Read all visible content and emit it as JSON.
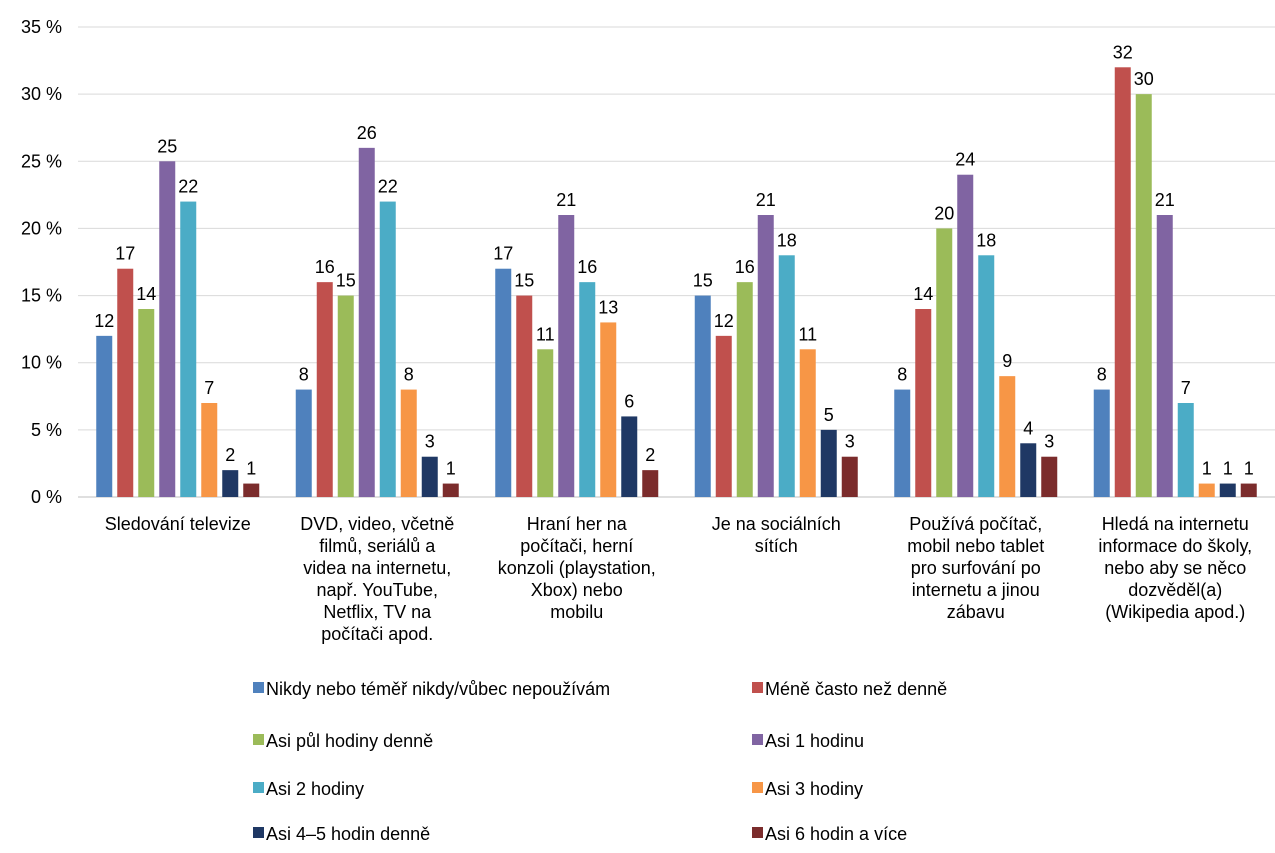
{
  "chart_data": {
    "type": "bar",
    "title": "",
    "xlabel": "",
    "ylabel": "",
    "ylim": [
      0,
      35
    ],
    "y_ticks": [
      "0 %",
      "5 %",
      "10 %",
      "15 %",
      "20 %",
      "25 %",
      "30 %",
      "35 %"
    ],
    "grid": true,
    "legend_position": "bottom",
    "categories": [
      [
        "Sledování televize"
      ],
      [
        "DVD, video, včetně",
        "filmů, seriálů a",
        "videa na internetu,",
        "např. YouTube,",
        "Netflix, TV na",
        "počítači apod."
      ],
      [
        "Hraní her na",
        "počítači, herní",
        "konzoli (playstation,",
        "Xbox) nebo",
        "mobilu"
      ],
      [
        "Je na sociálních",
        "sítích"
      ],
      [
        "Používá počítač,",
        "mobil nebo tablet",
        "pro surfování po",
        "internetu a jinou",
        "zábavu"
      ],
      [
        "Hledá na internetu",
        "informace do školy,",
        "nebo aby se něco",
        "dozvěděl(a)",
        "(Wikipedia apod.)"
      ]
    ],
    "series": [
      {
        "name": "Nikdy nebo téměř nikdy/vůbec nepoužívám",
        "color": "#4f81bd",
        "values": [
          12,
          8,
          17,
          15,
          8,
          8
        ]
      },
      {
        "name": "Méně často než denně",
        "color": "#c0504d",
        "values": [
          17,
          16,
          15,
          12,
          14,
          32
        ]
      },
      {
        "name": "Asi půl hodiny denně",
        "color": "#9bbb59",
        "values": [
          14,
          15,
          11,
          16,
          20,
          30
        ]
      },
      {
        "name": "Asi 1 hodinu",
        "color": "#8064a2",
        "values": [
          25,
          26,
          21,
          21,
          24,
          21
        ]
      },
      {
        "name": "Asi 2 hodiny",
        "color": "#4bacc6",
        "values": [
          22,
          22,
          16,
          18,
          18,
          7
        ]
      },
      {
        "name": "Asi 3 hodiny",
        "color": "#f79646",
        "values": [
          7,
          8,
          13,
          11,
          9,
          1
        ]
      },
      {
        "name": "Asi 4–5 hodin denně",
        "color": "#1f3864",
        "values": [
          2,
          3,
          6,
          5,
          4,
          1
        ]
      },
      {
        "name": "Asi 6 hodin a více",
        "color": "#7b2c2c",
        "values": [
          1,
          1,
          2,
          3,
          3,
          1
        ]
      }
    ]
  }
}
